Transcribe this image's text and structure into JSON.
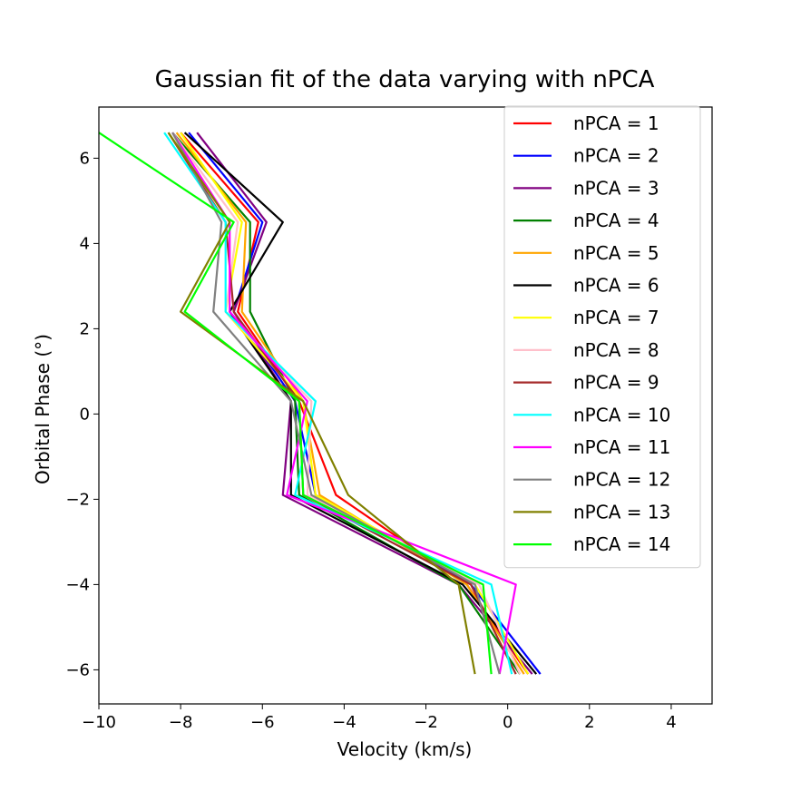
{
  "chart_data": {
    "type": "line",
    "title": "Gaussian fit of the data varying with nPCA",
    "xlabel": "Velocity (km/s)",
    "ylabel": "Orbital Phase (°)",
    "xlim": [
      -10,
      5
    ],
    "ylim": [
      -6.8,
      7.2
    ],
    "xticks": [
      -10,
      -8,
      -6,
      -4,
      -2,
      0,
      2,
      4
    ],
    "xtick_labels": [
      "−10",
      "−8",
      "−6",
      "−4",
      "−2",
      "0",
      "2",
      "4"
    ],
    "yticks": [
      -6,
      -4,
      -2,
      0,
      2,
      4,
      6
    ],
    "ytick_labels": [
      "−6",
      "−4",
      "−2",
      "0",
      "2",
      "4",
      "6"
    ],
    "grid": false,
    "legend_position": "top-right",
    "phases": [
      6.6,
      4.5,
      2.4,
      0.3,
      -1.9,
      -4.0,
      -6.1
    ],
    "series": [
      {
        "name": "nPCA = 1",
        "color": "#ff0000",
        "velocity": [
          -8.0,
          -6.1,
          -6.6,
          -5.1,
          -4.2,
          -1.0,
          0.5
        ]
      },
      {
        "name": "nPCA = 2",
        "color": "#0000ff",
        "velocity": [
          -7.8,
          -6.0,
          -6.7,
          -5.2,
          -4.7,
          -0.9,
          0.8
        ]
      },
      {
        "name": "nPCA = 3",
        "color": "#800080",
        "velocity": [
          -7.6,
          -5.9,
          -6.7,
          -5.3,
          -5.5,
          -1.2,
          0.6
        ]
      },
      {
        "name": "nPCA = 4",
        "color": "#008000",
        "velocity": [
          -8.2,
          -6.3,
          -6.3,
          -5.2,
          -5.1,
          -1.2,
          0.3
        ]
      },
      {
        "name": "nPCA = 5",
        "color": "#ffa500",
        "velocity": [
          -8.1,
          -6.4,
          -6.5,
          -5.0,
          -4.6,
          -1.0,
          0.4
        ]
      },
      {
        "name": "nPCA = 6",
        "color": "#000000",
        "velocity": [
          -7.9,
          -5.5,
          -6.8,
          -5.3,
          -5.3,
          -1.1,
          0.7
        ]
      },
      {
        "name": "nPCA = 7",
        "color": "#ffff00",
        "velocity": [
          -8.0,
          -6.5,
          -6.9,
          -5.0,
          -4.7,
          -0.8,
          0.5
        ]
      },
      {
        "name": "nPCA = 8",
        "color": "#ffc0cb",
        "velocity": [
          -8.2,
          -6.6,
          -6.9,
          -4.8,
          -4.9,
          -0.7,
          0.3
        ]
      },
      {
        "name": "nPCA = 9",
        "color": "#a52a2a",
        "velocity": [
          -8.3,
          -6.9,
          -6.7,
          -5.1,
          -5.0,
          -0.9,
          0.2
        ]
      },
      {
        "name": "nPCA = 10",
        "color": "#00ffff",
        "velocity": [
          -8.4,
          -6.9,
          -6.9,
          -4.7,
          -5.2,
          -0.4,
          0.1
        ]
      },
      {
        "name": "nPCA = 11",
        "color": "#ff00ff",
        "velocity": [
          -8.2,
          -6.8,
          -6.8,
          -4.9,
          -5.4,
          0.2,
          -0.2
        ]
      },
      {
        "name": "nPCA = 12",
        "color": "#808080",
        "velocity": [
          -8.2,
          -7.0,
          -7.2,
          -5.3,
          -4.8,
          -0.8,
          -0.2
        ]
      },
      {
        "name": "nPCA = 13",
        "color": "#808000",
        "velocity": [
          -8.3,
          -6.8,
          -8.0,
          -5.0,
          -3.9,
          -1.2,
          -0.8
        ]
      },
      {
        "name": "nPCA = 14",
        "color": "#00ff00",
        "velocity": [
          -10.0,
          -6.7,
          -7.9,
          -5.1,
          -5.0,
          -0.6,
          -0.4
        ]
      }
    ]
  }
}
